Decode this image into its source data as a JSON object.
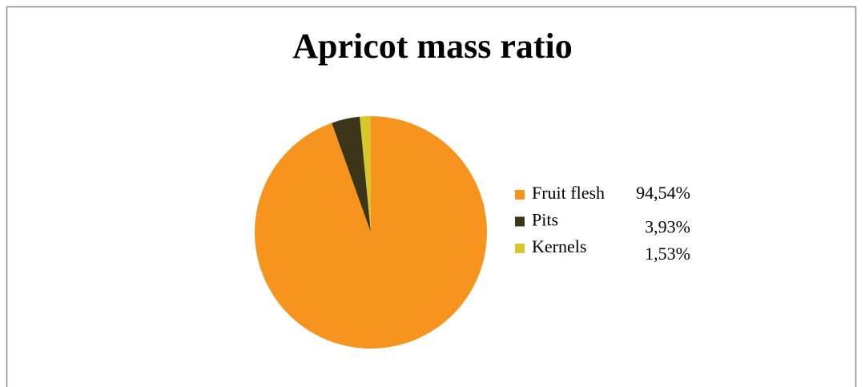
{
  "chart_data": {
    "type": "pie",
    "title": "Apricot mass ratio",
    "categories": [
      "Fruit flesh",
      "Pits",
      "Kernels"
    ],
    "values": [
      94.54,
      3.93,
      1.53
    ],
    "value_labels": [
      "94,54%",
      "3,93%",
      "1,53%"
    ],
    "colors": [
      "#f7941d",
      "#3d3519",
      "#d8c72a"
    ],
    "legend": "right"
  }
}
